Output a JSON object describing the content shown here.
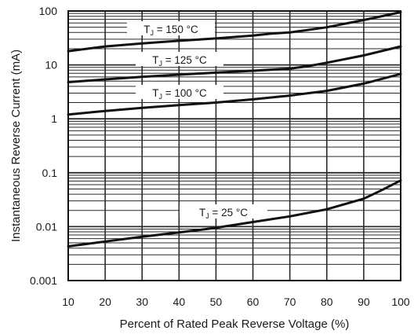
{
  "chart_data": {
    "type": "line",
    "xlabel": "Percent of Rated Peak Reverse Voltage (%)",
    "ylabel": "Instantaneous Reverse Current (mA)",
    "xlim": [
      10,
      100
    ],
    "ylim": [
      0.001,
      100
    ],
    "yscale": "log",
    "grid": true,
    "x_ticks": [
      "10",
      "20",
      "30",
      "40",
      "50",
      "60",
      "70",
      "80",
      "90",
      "100"
    ],
    "y_ticks": [
      "0.001",
      "0.01",
      "0.1",
      "1",
      "10",
      "100"
    ],
    "series": [
      {
        "name": "TJ = 150 °C",
        "label_parts": {
          "t": "T",
          "sub": "J",
          "rest": " = 150 °C"
        },
        "x": [
          10,
          20,
          30,
          40,
          50,
          60,
          65,
          70,
          80,
          90,
          100
        ],
        "y": [
          18,
          22,
          25,
          28,
          31,
          35,
          38,
          40,
          50,
          68,
          95
        ]
      },
      {
        "name": "TJ = 125 °C",
        "label_parts": {
          "t": "T",
          "sub": "J",
          "rest": " = 125 °C"
        },
        "x": [
          10,
          20,
          30,
          40,
          50,
          60,
          70,
          75,
          80,
          90,
          100
        ],
        "y": [
          4.8,
          5.4,
          6.0,
          6.6,
          7.2,
          7.8,
          8.5,
          9.5,
          11,
          15,
          22
        ]
      },
      {
        "name": "TJ = 100 °C",
        "label_parts": {
          "t": "T",
          "sub": "J",
          "rest": " = 100 °C"
        },
        "x": [
          10,
          20,
          30,
          40,
          50,
          60,
          70,
          80,
          90,
          100
        ],
        "y": [
          1.2,
          1.4,
          1.6,
          1.8,
          2.0,
          2.3,
          2.7,
          3.3,
          4.5,
          6.8
        ]
      },
      {
        "name": "TJ = 25 °C",
        "label_parts": {
          "t": "T",
          "sub": "J",
          "rest": " = 25 °C"
        },
        "x": [
          10,
          20,
          30,
          40,
          50,
          60,
          70,
          80,
          90,
          95,
          100
        ],
        "y": [
          0.0043,
          0.0053,
          0.0065,
          0.0078,
          0.0095,
          0.0122,
          0.0155,
          0.021,
          0.033,
          0.048,
          0.072
        ]
      }
    ],
    "colors": {
      "line": "#111111",
      "grid": "#2a2a2a",
      "background": "#ffffff"
    }
  }
}
